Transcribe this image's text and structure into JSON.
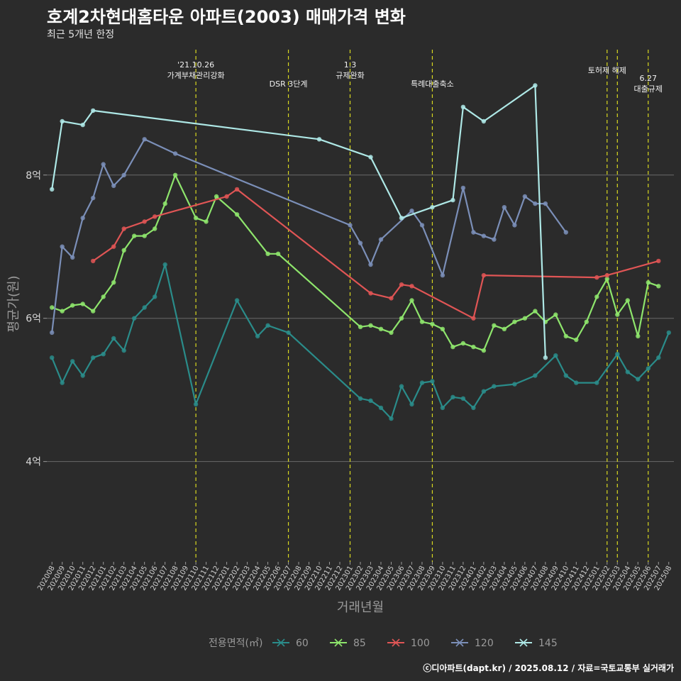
{
  "chart_data": {
    "type": "line",
    "title": "호계2차현대홈타운 아파트(2003) 매매가격 변화",
    "subtitle": "최근 5개년 한정",
    "xlabel": "거래년월",
    "ylabel": "평균가(원)",
    "ylim": [
      2.6,
      9.8
    ],
    "y_unit": "억",
    "yticks": [
      {
        "value": 4,
        "label": "4억"
      },
      {
        "value": 6,
        "label": "6억"
      },
      {
        "value": 8,
        "label": "8억"
      }
    ],
    "x": [
      "202008",
      "202009",
      "202010",
      "202011",
      "202012",
      "202101",
      "202102",
      "202103",
      "202104",
      "202105",
      "202106",
      "202107",
      "202108",
      "202109",
      "202110",
      "202111",
      "202112",
      "202201",
      "202202",
      "202203",
      "202204",
      "202205",
      "202206",
      "202207",
      "202208",
      "202209",
      "202210",
      "202211",
      "202212",
      "202301",
      "202302",
      "202303",
      "202304",
      "202305",
      "202306",
      "202307",
      "202308",
      "202309",
      "202310",
      "202311",
      "202312",
      "202401",
      "202402",
      "202403",
      "202404",
      "202405",
      "202406",
      "202407",
      "202408",
      "202409",
      "202410",
      "202411",
      "202412",
      "202501",
      "202502",
      "202503",
      "202504",
      "202505",
      "202506",
      "202507",
      "202508"
    ],
    "legend_title": "전용면적(㎡)",
    "legend_position": "bottom",
    "grid": true,
    "series": [
      {
        "name": "60",
        "color": "#2a8c8a",
        "points": [
          [
            "202008",
            5.45
          ],
          [
            "202009",
            5.1
          ],
          [
            "202010",
            5.4
          ],
          [
            "202011",
            5.2
          ],
          [
            "202012",
            5.45
          ],
          [
            "202101",
            5.5
          ],
          [
            "202102",
            5.72
          ],
          [
            "202103",
            5.55
          ],
          [
            "202104",
            6.0
          ],
          [
            "202105",
            6.15
          ],
          [
            "202106",
            6.3
          ],
          [
            "202107",
            6.75
          ],
          [
            "202110",
            4.8
          ],
          [
            "202202",
            6.25
          ],
          [
            "202204",
            5.75
          ],
          [
            "202205",
            5.9
          ],
          [
            "202207",
            5.8
          ],
          [
            "202302",
            4.88
          ],
          [
            "202303",
            4.85
          ],
          [
            "202304",
            4.75
          ],
          [
            "202305",
            4.6
          ],
          [
            "202306",
            5.05
          ],
          [
            "202307",
            4.8
          ],
          [
            "202308",
            5.1
          ],
          [
            "202309",
            5.12
          ],
          [
            "202310",
            4.75
          ],
          [
            "202311",
            4.9
          ],
          [
            "202312",
            4.88
          ],
          [
            "202401",
            4.75
          ],
          [
            "202402",
            4.98
          ],
          [
            "202403",
            5.05
          ],
          [
            "202405",
            5.08
          ],
          [
            "202407",
            5.2
          ],
          [
            "202409",
            5.48
          ],
          [
            "202410",
            5.2
          ],
          [
            "202411",
            5.1
          ],
          [
            "202501",
            5.1
          ],
          [
            "202503",
            5.5
          ],
          [
            "202504",
            5.25
          ],
          [
            "202505",
            5.15
          ],
          [
            "202506",
            5.3
          ],
          [
            "202507",
            5.45
          ],
          [
            "202508",
            5.8
          ]
        ]
      },
      {
        "name": "85",
        "color": "#8ee56c",
        "points": [
          [
            "202008",
            6.15
          ],
          [
            "202009",
            6.1
          ],
          [
            "202010",
            6.18
          ],
          [
            "202011",
            6.2
          ],
          [
            "202012",
            6.1
          ],
          [
            "202101",
            6.3
          ],
          [
            "202102",
            6.5
          ],
          [
            "202103",
            6.95
          ],
          [
            "202104",
            7.15
          ],
          [
            "202105",
            7.15
          ],
          [
            "202106",
            7.25
          ],
          [
            "202107",
            7.6
          ],
          [
            "202108",
            8.0
          ],
          [
            "202110",
            7.4
          ],
          [
            "202111",
            7.35
          ],
          [
            "202112",
            7.7
          ],
          [
            "202202",
            7.45
          ],
          [
            "202205",
            6.9
          ],
          [
            "202206",
            6.9
          ],
          [
            "202302",
            5.88
          ],
          [
            "202303",
            5.9
          ],
          [
            "202304",
            5.85
          ],
          [
            "202305",
            5.8
          ],
          [
            "202306",
            6.0
          ],
          [
            "202307",
            6.25
          ],
          [
            "202308",
            5.95
          ],
          [
            "202309",
            5.92
          ],
          [
            "202310",
            5.85
          ],
          [
            "202311",
            5.6
          ],
          [
            "202312",
            5.65
          ],
          [
            "202401",
            5.6
          ],
          [
            "202402",
            5.55
          ],
          [
            "202403",
            5.9
          ],
          [
            "202404",
            5.85
          ],
          [
            "202405",
            5.95
          ],
          [
            "202406",
            6.0
          ],
          [
            "202407",
            6.1
          ],
          [
            "202408",
            5.95
          ],
          [
            "202409",
            6.05
          ],
          [
            "202410",
            5.75
          ],
          [
            "202411",
            5.7
          ],
          [
            "202412",
            5.95
          ],
          [
            "202501",
            6.3
          ],
          [
            "202502",
            6.55
          ],
          [
            "202503",
            6.05
          ],
          [
            "202504",
            6.25
          ],
          [
            "202505",
            5.75
          ],
          [
            "202506",
            6.5
          ],
          [
            "202507",
            6.45
          ]
        ]
      },
      {
        "name": "100",
        "color": "#e05555",
        "points": [
          [
            "202012",
            6.8
          ],
          [
            "202102",
            7.0
          ],
          [
            "202103",
            7.25
          ],
          [
            "202105",
            7.35
          ],
          [
            "202106",
            7.42
          ],
          [
            "202201",
            7.7
          ],
          [
            "202202",
            7.8
          ],
          [
            "202303",
            6.35
          ],
          [
            "202305",
            6.28
          ],
          [
            "202306",
            6.47
          ],
          [
            "202307",
            6.45
          ],
          [
            "202401",
            6.0
          ],
          [
            "202402",
            6.6
          ],
          [
            "202501",
            6.57
          ],
          [
            "202502",
            6.6
          ],
          [
            "202507",
            6.8
          ]
        ]
      },
      {
        "name": "120",
        "color": "#7b8fb8",
        "points": [
          [
            "202008",
            5.8
          ],
          [
            "202009",
            7.0
          ],
          [
            "202010",
            6.85
          ],
          [
            "202011",
            7.4
          ],
          [
            "202012",
            7.68
          ],
          [
            "202101",
            8.15
          ],
          [
            "202102",
            7.85
          ],
          [
            "202103",
            8.0
          ],
          [
            "202105",
            8.5
          ],
          [
            "202108",
            8.3
          ],
          [
            "202301",
            7.3
          ],
          [
            "202302",
            7.05
          ],
          [
            "202303",
            6.75
          ],
          [
            "202304",
            7.1
          ],
          [
            "202307",
            7.5
          ],
          [
            "202308",
            7.3
          ],
          [
            "202310",
            6.6
          ],
          [
            "202312",
            7.82
          ],
          [
            "202401",
            7.2
          ],
          [
            "202402",
            7.15
          ],
          [
            "202403",
            7.1
          ],
          [
            "202404",
            7.55
          ],
          [
            "202405",
            7.3
          ],
          [
            "202406",
            7.7
          ],
          [
            "202407",
            7.6
          ],
          [
            "202408",
            7.6
          ],
          [
            "202410",
            7.2
          ]
        ]
      },
      {
        "name": "145",
        "color": "#aee8e6",
        "points": [
          [
            "202008",
            7.8
          ],
          [
            "202009",
            8.75
          ],
          [
            "202011",
            8.7
          ],
          [
            "202012",
            8.9
          ],
          [
            "202210",
            8.5
          ],
          [
            "202303",
            8.25
          ],
          [
            "202306",
            7.4
          ],
          [
            "202309",
            7.55
          ],
          [
            "202311",
            7.65
          ],
          [
            "202312",
            8.95
          ],
          [
            "202402",
            8.75
          ],
          [
            "202407",
            9.25
          ],
          [
            "202408",
            5.45
          ]
        ]
      }
    ],
    "annotations": [
      {
        "x": "202110",
        "lines": [
          "'21.10.26",
          "가계부채관리강화"
        ]
      },
      {
        "x": "202207",
        "lines": [
          "DSR 3단계"
        ]
      },
      {
        "x": "202301",
        "lines": [
          "1.3",
          "규제완화"
        ]
      },
      {
        "x": "202309",
        "lines": [
          "특례대출축소"
        ]
      },
      {
        "x": "202502",
        "lines": [
          "토허제 해제"
        ]
      },
      {
        "x": "202503",
        "lines": [
          ""
        ]
      },
      {
        "x": "202506",
        "lines": [
          "6.27",
          "대출규제"
        ]
      }
    ]
  },
  "footer": {
    "credit": "ⓒ디아파트(dapt.kr) / 2025.08.12 / 자료=국토교통부 실거래가"
  }
}
